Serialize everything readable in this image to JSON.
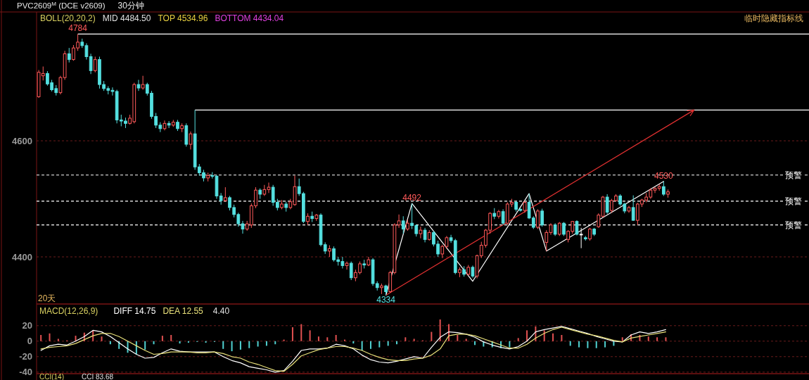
{
  "chart_data": [
    {
      "type": "candlestick",
      "title": "PVC2609$^{M}$ (DCE v2609)",
      "subtitle": "30分钟",
      "ylim": [
        4320,
        4822
      ],
      "yticks": [
        4400,
        4600
      ],
      "grid": "y",
      "legend": false,
      "tick_labels": "y",
      "categories": [
        null,
        null,
        null,
        null,
        null,
        null,
        null,
        null,
        null,
        null,
        null,
        null,
        null,
        null,
        null,
        null,
        null,
        null,
        null,
        null,
        null,
        null,
        null,
        null,
        null,
        null,
        null,
        null,
        null,
        null,
        null,
        null,
        null,
        null,
        null,
        null,
        null,
        null,
        null,
        null,
        null,
        null,
        null,
        null,
        null,
        null,
        null,
        null,
        null,
        null,
        null,
        null,
        null,
        null,
        null,
        null,
        null,
        null,
        null,
        null,
        null,
        null,
        null,
        null,
        null,
        null,
        null,
        null,
        null,
        null,
        null,
        null,
        null,
        null,
        null,
        null,
        null,
        null,
        null,
        null,
        null,
        null,
        null,
        null,
        null,
        null,
        null,
        null,
        null,
        null,
        null,
        null,
        null,
        null,
        null,
        null,
        null,
        null,
        null,
        null,
        null,
        null,
        null,
        null,
        null,
        null,
        null,
        null,
        null,
        null,
        null,
        null,
        null,
        null,
        null,
        null,
        null,
        null,
        null,
        null,
        null,
        null,
        null,
        null,
        null,
        null,
        null,
        null,
        null,
        null,
        null,
        null,
        null,
        null,
        null,
        null,
        null,
        null,
        null,
        null,
        null,
        null,
        null,
        null,
        null,
        null,
        null,
        null,
        null,
        null,
        null,
        null,
        null,
        null,
        null,
        null,
        null,
        null,
        null,
        null,
        null,
        null,
        null,
        null,
        null,
        null,
        null,
        null,
        null,
        null,
        null,
        null,
        null,
        null,
        null,
        null,
        null,
        null
      ],
      "colors": [
        "#ff5a5a",
        "#ff5a5a",
        "#54e0e0",
        "#54e0e0",
        "#54e0e0",
        "#ff5a5a",
        "#ff5a5a",
        "#54e0e0",
        "#ff5a5a",
        "#ff5a5a",
        "#54e0e0",
        "#54e0e0",
        "#54e0e0",
        "#ff5a5a",
        "#54e0e0",
        "#54e0e0",
        "#54e0e0",
        "#54e0e0",
        "#54e0e0",
        "#54e0e0",
        "#54e0e0",
        "#ff5a5a",
        "#ff5a5a",
        "#54e0e0",
        "#ff5a5a",
        "#54e0e0",
        "#54e0e0",
        "#54e0e0",
        "#54e0e0",
        "#ff5a5a",
        "#54e0e0",
        "#ff5a5a",
        "#54e0e0",
        "#ff5a5a",
        "#54e0e0",
        "#ff5a5a",
        "#54e0e0",
        "#54e0e0",
        "#54e0e0",
        "#ff5a5a",
        "#54e0e0",
        "#54e0e0",
        "#54e0e0",
        "#ff5a5a",
        "#54e0e0",
        "#54e0e0",
        "#54e0e0",
        "#54e0e0",
        "#ff5a5a",
        "#ff5a5a",
        "#ff5a5a",
        "#54e0e0",
        "#ff5a5a",
        "#ff5a5a",
        "#54e0e0",
        "#54e0e0",
        "#ff5a5a",
        "#54e0e0",
        "#ff5a5a",
        "#ff5a5a",
        "#54e0e0",
        "#54e0e0",
        "#ff5a5a",
        "#54e0e0",
        "#ff5a5a",
        "#54e0e0",
        "#54e0e0",
        "#ff5a5a",
        "#54e0e0",
        "#54e0e0",
        "#54e0e0",
        "#ff5a5a",
        "#54e0e0",
        "#ff5a5a",
        "#ff5a5a",
        "#54e0e0",
        "#ff5a5a",
        "#54e0e0",
        "#54e0e0",
        "#ff5a5a",
        "#54e0e0",
        "#ff5a5a",
        "#ff5a5a",
        "#ff5a5a",
        "#54e0e0",
        "#ff5a5a",
        "#54e0e0",
        "#54e0e0",
        "#ff5a5a",
        "#54e0e0",
        "#ff5a5a",
        "#54e0e0",
        "#54e0e0",
        "#ff5a5a",
        "#ff5a5a",
        "#54e0e0",
        "#54e0e0",
        "#ff5a5a",
        "#54e0e0",
        "#ff5a5a",
        "#54e0e0",
        "#ff5a5a",
        "#ff5a5a",
        "#ff5a5a",
        "#ff5a5a",
        "#54e0e0",
        "#ff5a5a",
        "#54e0e0",
        "#ff5a5a",
        "#ff5a5a",
        "#54e0e0",
        "#54e0e0",
        "#ff5a5a",
        "#54e0e0",
        "#54e0e0",
        "#ff5a5a",
        "#54e0e0",
        "#ff5a5a",
        "#ff5a5a",
        "#54e0e0",
        "#ff5a5a",
        "#54e0e0",
        "#ff5a5a",
        "#ff5a5a",
        "#54e0e0",
        "#ffffff",
        "#54e0e0",
        "#ff5a5a",
        "#54e0e0",
        "#ff5a5a",
        "#ff5a5a",
        "#54e0e0",
        "#ff5a5a",
        "#ff5a5a",
        "#54e0e0",
        "#54e0e0",
        "#ff5a5a",
        "#54e0e0",
        "#ff5a5a",
        "#ff5a5a",
        "#ff5a5a",
        "#ff5a5a",
        "#ff5a5a",
        "#ff5a5a",
        "#54e0e0",
        "#ff5a5a",
        null,
        null,
        null,
        null,
        null,
        null,
        null,
        null,
        null,
        null,
        null,
        null,
        null,
        null,
        null,
        null,
        null,
        null,
        null,
        null,
        null,
        null,
        null,
        null,
        null,
        null,
        null,
        null,
        null,
        null,
        null,
        null
      ],
      "ohlc": [
        [
          4676,
          4722,
          4674,
          4718
        ],
        [
          4712,
          4728,
          4704,
          4716
        ],
        [
          4716,
          4720,
          4695,
          4698
        ],
        [
          4700,
          4705,
          4685,
          4688
        ],
        [
          4690,
          4696,
          4678,
          4683
        ],
        [
          4683,
          4712,
          4680,
          4709
        ],
        [
          4709,
          4755,
          4705,
          4750
        ],
        [
          4750,
          4760,
          4735,
          4740
        ],
        [
          4740,
          4765,
          4738,
          4760
        ],
        [
          4760,
          4784,
          4755,
          4770
        ],
        [
          4770,
          4776,
          4760,
          4764
        ],
        [
          4764,
          4768,
          4740,
          4745
        ],
        [
          4745,
          4750,
          4715,
          4721
        ],
        [
          4721,
          4745,
          4718,
          4740
        ],
        [
          4740,
          4745,
          4690,
          4697
        ],
        [
          4697,
          4703,
          4686,
          4690
        ],
        [
          4690,
          4694,
          4680,
          4687
        ],
        [
          4687,
          4692,
          4678,
          4685
        ],
        [
          4685,
          4688,
          4630,
          4636
        ],
        [
          4636,
          4645,
          4625,
          4634
        ],
        [
          4634,
          4640,
          4622,
          4630
        ],
        [
          4630,
          4645,
          4628,
          4639
        ],
        [
          4633,
          4700,
          4630,
          4697
        ],
        [
          4697,
          4705,
          4686,
          4691
        ],
        [
          4691,
          4712,
          4688,
          4697
        ],
        [
          4697,
          4700,
          4678,
          4682
        ],
        [
          4682,
          4686,
          4638,
          4642
        ],
        [
          4642,
          4648,
          4622,
          4627
        ],
        [
          4627,
          4632,
          4615,
          4621
        ],
        [
          4621,
          4635,
          4618,
          4630
        ],
        [
          4630,
          4634,
          4622,
          4627
        ],
        [
          4627,
          4636,
          4624,
          4632
        ],
        [
          4632,
          4636,
          4617,
          4621
        ],
        [
          4621,
          4630,
          4615,
          4626
        ],
        [
          4626,
          4630,
          4590,
          4594
        ],
        [
          4594,
          4616,
          4585,
          4612
        ],
        [
          4612,
          4653,
          4550,
          4555
        ],
        [
          4555,
          4560,
          4540,
          4545
        ],
        [
          4545,
          4550,
          4530,
          4536
        ],
        [
          4536,
          4545,
          4530,
          4540
        ],
        [
          4540,
          4546,
          4535,
          4539
        ],
        [
          4539,
          4541,
          4500,
          4505
        ],
        [
          4505,
          4510,
          4490,
          4497
        ],
        [
          4497,
          4520,
          4495,
          4502
        ],
        [
          4502,
          4505,
          4480,
          4485
        ],
        [
          4485,
          4490,
          4468,
          4473
        ],
        [
          4473,
          4476,
          4452,
          4457
        ],
        [
          4457,
          4462,
          4440,
          4448
        ],
        [
          4448,
          4462,
          4445,
          4457
        ],
        [
          4455,
          4492,
          4450,
          4488
        ],
        [
          4488,
          4520,
          4484,
          4515
        ],
        [
          4515,
          4518,
          4500,
          4508
        ],
        [
          4508,
          4524,
          4505,
          4516
        ],
        [
          4516,
          4528,
          4510,
          4520
        ],
        [
          4520,
          4524,
          4488,
          4494
        ],
        [
          4494,
          4500,
          4480,
          4485
        ],
        [
          4485,
          4498,
          4482,
          4491
        ],
        [
          4491,
          4495,
          4478,
          4485
        ],
        [
          4485,
          4500,
          4482,
          4495
        ],
        [
          4490,
          4540,
          4488,
          4521
        ],
        [
          4521,
          4535,
          4505,
          4509
        ],
        [
          4509,
          4512,
          4458,
          4461
        ],
        [
          4461,
          4475,
          4455,
          4470
        ],
        [
          4470,
          4478,
          4460,
          4466
        ],
        [
          4466,
          4474,
          4462,
          4472
        ],
        [
          4472,
          4475,
          4418,
          4421
        ],
        [
          4421,
          4425,
          4405,
          4410
        ],
        [
          4410,
          4420,
          4400,
          4414
        ],
        [
          4414,
          4418,
          4392,
          4395
        ],
        [
          4395,
          4400,
          4385,
          4392
        ],
        [
          4392,
          4400,
          4380,
          4385
        ],
        [
          4385,
          4392,
          4378,
          4389
        ],
        [
          4389,
          4392,
          4360,
          4364
        ],
        [
          4364,
          4378,
          4358,
          4373
        ],
        [
          4373,
          4392,
          4370,
          4388
        ],
        [
          4388,
          4395,
          4380,
          4386
        ],
        [
          4386,
          4400,
          4384,
          4395
        ],
        [
          4395,
          4398,
          4350,
          4354
        ],
        [
          4354,
          4358,
          4342,
          4347
        ],
        [
          4347,
          4354,
          4336,
          4350
        ],
        [
          4350,
          4352,
          4334,
          4340
        ],
        [
          4340,
          4376,
          4338,
          4373
        ],
        [
          4373,
          4458,
          4370,
          4455
        ],
        [
          4455,
          4473,
          4450,
          4462
        ],
        [
          4462,
          4470,
          4440,
          4448
        ],
        [
          4448,
          4464,
          4445,
          4458
        ],
        [
          4458,
          4492,
          4448,
          4454
        ],
        [
          4454,
          4456,
          4435,
          4440
        ],
        [
          4440,
          4452,
          4432,
          4446
        ],
        [
          4446,
          4450,
          4425,
          4430
        ],
        [
          4430,
          4446,
          4428,
          4442
        ],
        [
          4442,
          4445,
          4418,
          4422
        ],
        [
          4422,
          4428,
          4400,
          4405
        ],
        [
          4405,
          4421,
          4398,
          4418
        ],
        [
          4418,
          4436,
          4414,
          4433
        ],
        [
          4433,
          4438,
          4424,
          4428
        ],
        [
          4428,
          4431,
          4370,
          4373
        ],
        [
          4373,
          4382,
          4365,
          4378
        ],
        [
          4378,
          4384,
          4366,
          4370
        ],
        [
          4370,
          4386,
          4368,
          4382
        ],
        [
          4382,
          4385,
          4364,
          4367
        ],
        [
          4367,
          4404,
          4363,
          4402
        ],
        [
          4402,
          4426,
          4398,
          4420
        ],
        [
          4420,
          4448,
          4416,
          4446
        ],
        [
          4446,
          4477,
          4440,
          4475
        ],
        [
          4475,
          4484,
          4465,
          4470
        ],
        [
          4470,
          4481,
          4466,
          4478
        ],
        [
          4478,
          4482,
          4455,
          4458
        ],
        [
          4458,
          4494,
          4455,
          4491
        ],
        [
          4491,
          4500,
          4486,
          4494
        ],
        [
          4494,
          4496,
          4478,
          4482
        ],
        [
          4482,
          4484,
          4478,
          4480
        ],
        [
          4480,
          4497,
          4476,
          4494
        ],
        [
          4494,
          4509,
          4465,
          4467
        ],
        [
          4467,
          4470,
          4448,
          4451
        ],
        [
          4451,
          4482,
          4448,
          4479
        ],
        [
          4479,
          4483,
          4452,
          4455
        ],
        [
          4425,
          4446,
          4410,
          4442
        ],
        [
          4442,
          4458,
          4438,
          4455
        ],
        [
          4455,
          4458,
          4436,
          4439
        ],
        [
          4439,
          4460,
          4436,
          4458
        ],
        [
          4458,
          4460,
          4436,
          4439
        ],
        [
          4430,
          4446,
          4425,
          4444
        ],
        [
          4444,
          4462,
          4440,
          4461
        ],
        [
          4461,
          4463,
          4437,
          4439
        ],
        [
          4439,
          4450,
          4415,
          4439
        ],
        [
          4433,
          4436,
          4428,
          4431
        ],
        [
          4431,
          4450,
          4428,
          4448
        ],
        [
          4448,
          4450,
          4436,
          4439
        ],
        [
          4452,
          4475,
          4450,
          4472
        ],
        [
          4470,
          4505,
          4468,
          4503
        ],
        [
          4503,
          4508,
          4474,
          4477
        ],
        [
          4480,
          4500,
          4476,
          4497
        ],
        [
          4497,
          4508,
          4495,
          4505
        ],
        [
          4505,
          4508,
          4488,
          4491
        ],
        [
          4491,
          4493,
          4475,
          4479
        ],
        [
          4479,
          4488,
          4476,
          4485
        ],
        [
          4485,
          4506,
          4462,
          4463
        ],
        [
          4463,
          4493,
          4455,
          4491
        ],
        [
          4491,
          4500,
          4486,
          4498
        ],
        [
          4498,
          4510,
          4494,
          4503
        ],
        [
          4503,
          4518,
          4500,
          4515
        ],
        [
          4515,
          4520,
          4510,
          4518
        ],
        [
          4518,
          4525,
          4514,
          4521
        ],
        [
          4521,
          4530,
          4505,
          4508
        ],
        [
          4508,
          4516,
          4502,
          4512
        ],
        null,
        null,
        null,
        null,
        null,
        null,
        null,
        null,
        null,
        null,
        null,
        null,
        null,
        null,
        null,
        null,
        null,
        null,
        null,
        null,
        null,
        null,
        null,
        null,
        null,
        null,
        null,
        null,
        null,
        null,
        null,
        null
      ],
      "series": [
        {
          "type": "line",
          "color": "#ffffff",
          "values": [
            null,
            null,
            null,
            null,
            null,
            null,
            null,
            null,
            null,
            null,
            null,
            null,
            null,
            null,
            null,
            null,
            null,
            null,
            null,
            null,
            null,
            null,
            null,
            null,
            null,
            null,
            null,
            null,
            null,
            null,
            null,
            null,
            null,
            null,
            null,
            null,
            null,
            null,
            null,
            null,
            null,
            null,
            null,
            null,
            null,
            null,
            null,
            null,
            null,
            null,
            null,
            null,
            null,
            null,
            null,
            null,
            null,
            null,
            null,
            null,
            null,
            null,
            null,
            null,
            null,
            null,
            null,
            null,
            null,
            null,
            null,
            null,
            null,
            null,
            null,
            null,
            null,
            null,
            null,
            null,
            4334,
            null,
            null,
            null,
            null,
            null,
            4492,
            null,
            null,
            null,
            null,
            null,
            null,
            null,
            null,
            null,
            null,
            null,
            null,
            null,
            4358,
            null,
            null,
            null,
            null,
            null,
            null,
            null,
            null,
            null,
            null,
            null,
            null,
            4509,
            null,
            null,
            null,
            4410,
            null,
            null,
            null,
            null,
            null,
            null,
            null,
            null,
            null,
            null,
            null,
            null,
            null,
            null,
            null,
            null,
            null,
            null,
            null,
            null,
            null,
            null,
            null,
            null,
            null,
            null,
            4530,
            null,
            null,
            null,
            null,
            null,
            null,
            null,
            null,
            null,
            null,
            null,
            null,
            null,
            null,
            null,
            null,
            null,
            null,
            null,
            null,
            null,
            null,
            null,
            null,
            null,
            null,
            null,
            null,
            null,
            null,
            null,
            null,
            null
          ]
        }
      ],
      "ref_lines": [
        {
          "axis": "y",
          "value": 4784,
          "color": "#ffffff",
          "line_style": "solid"
        },
        {
          "axis": "y",
          "value": 4653,
          "color": "#ffffff",
          "line_style": "solid"
        },
        {
          "axis": "y",
          "value": 4541,
          "label": "预警",
          "color": "#ffffff",
          "line_style": "dashed"
        },
        {
          "axis": "y",
          "value": 4496,
          "label": "预警",
          "color": "#ffffff",
          "line_style": "dashed"
        },
        {
          "axis": "y",
          "value": 4455,
          "label": "预警",
          "color": "#ffffff",
          "line_style": "dashed"
        }
      ],
      "annotations": [
        "BOLL(20,20,2)",
        "MID 4484.50",
        "TOP 4534.96",
        "BOTTOM 4434.04",
        "临时隐藏指标线",
        "20天",
        {
          "text": "4784",
          "y": 4784
        },
        {
          "text": "4334",
          "y": 4334
        },
        {
          "text": "4492",
          "y": 4492
        },
        {
          "text": "4530",
          "y": 4530
        }
      ]
    },
    {
      "type": "bar",
      "title": "MACD(12,26,9)",
      "ylim": [
        -42,
        48
      ],
      "yticks": [
        20,
        0,
        -20,
        -40
      ],
      "grid": "y",
      "legend": "top left",
      "tick_labels": "y",
      "categories": [
        null,
        null,
        null,
        null,
        null,
        null,
        null,
        null,
        null,
        null,
        null,
        null,
        null,
        null,
        null,
        null,
        null,
        null,
        null,
        null,
        null,
        null,
        null,
        null,
        null,
        null,
        null,
        null,
        null,
        null,
        null,
        null,
        null,
        null,
        null,
        null,
        null,
        null,
        null,
        null,
        null,
        null,
        null,
        null,
        null,
        null,
        null,
        null,
        null,
        null,
        null,
        null,
        null,
        null,
        null,
        null,
        null,
        null,
        null,
        null,
        null,
        null,
        null,
        null,
        null,
        null,
        null,
        null,
        null,
        null,
        null,
        null,
        null,
        null,
        null,
        null,
        null,
        null,
        null,
        null,
        null,
        null,
        null,
        null,
        null,
        null,
        null,
        null,
        null
      ],
      "series": [
        {
          "type": "bar",
          "values": [
            8,
            10,
            3,
            1,
            7,
            11,
            14,
            6,
            -4,
            -10,
            -15,
            -17,
            -11,
            -4,
            7,
            8,
            -3,
            -2,
            -1,
            -2,
            -1,
            -10,
            -13,
            -11,
            -9,
            -7,
            -6,
            -4,
            2,
            18,
            22,
            14,
            6,
            5,
            8,
            2,
            -3,
            -12,
            -10,
            -8,
            -6,
            -4,
            5,
            3,
            1,
            12,
            28,
            22,
            8,
            3,
            -5,
            -7,
            -8,
            -9,
            -8,
            4,
            14,
            19,
            14,
            10,
            8,
            -6,
            -8,
            -9,
            -9,
            -8,
            -6,
            5,
            9,
            8,
            6,
            5,
            5,
            null,
            null,
            null,
            null,
            null,
            null,
            null,
            null,
            null,
            null,
            null,
            null,
            null,
            null,
            null,
            null
          ],
          "colors": [
            "#e05050",
            "#e05050",
            "#e05050",
            "#e05050",
            "#e05050",
            "#e05050",
            "#e05050",
            "#e05050",
            "#50d0d0",
            "#50d0d0",
            "#50d0d0",
            "#50d0d0",
            "#50d0d0",
            "#50d0d0",
            "#e05050",
            "#e05050",
            "#50d0d0",
            "#50d0d0",
            "#50d0d0",
            "#50d0d0",
            "#50d0d0",
            "#50d0d0",
            "#50d0d0",
            "#50d0d0",
            "#50d0d0",
            "#50d0d0",
            "#50d0d0",
            "#50d0d0",
            "#e05050",
            "#e05050",
            "#e05050",
            "#e05050",
            "#e05050",
            "#e05050",
            "#e05050",
            "#e05050",
            "#50d0d0",
            "#50d0d0",
            "#50d0d0",
            "#50d0d0",
            "#50d0d0",
            "#50d0d0",
            "#e05050",
            "#e05050",
            "#e05050",
            "#e05050",
            "#e05050",
            "#e05050",
            "#e05050",
            "#e05050",
            "#50d0d0",
            "#50d0d0",
            "#50d0d0",
            "#50d0d0",
            "#50d0d0",
            "#e05050",
            "#e05050",
            "#e05050",
            "#e05050",
            "#e05050",
            "#e05050",
            "#50d0d0",
            "#50d0d0",
            "#50d0d0",
            "#50d0d0",
            "#50d0d0",
            "#50d0d0",
            "#e05050",
            "#e05050",
            "#e05050",
            "#e05050",
            "#e05050",
            "#e05050",
            null,
            null,
            null,
            null,
            null,
            null,
            null,
            null,
            null,
            null,
            null,
            null,
            null,
            null,
            null,
            null
          ]
        },
        {
          "type": "line",
          "name": "DIFF 14.75",
          "color": "#ffffff",
          "values": [
            -12,
            -6,
            -4,
            -5,
            0,
            6,
            14,
            12,
            6,
            -2,
            -10,
            -17,
            -22,
            -21,
            -15,
            -10,
            -13,
            -14,
            -14,
            -14,
            -14,
            -20,
            -25,
            -28,
            -33,
            -35,
            -37,
            -40,
            -38,
            -26,
            -12,
            -10,
            -10,
            -9,
            -4,
            -6,
            -10,
            -18,
            -24,
            -27,
            -28,
            -26,
            -23,
            -20,
            -22,
            -8,
            5,
            12,
            11,
            9,
            5,
            -1,
            -5,
            -8,
            -10,
            -7,
            0,
            12,
            15,
            17,
            19,
            16,
            13,
            10,
            6,
            3,
            0,
            -1,
            8,
            12,
            10,
            12,
            15,
            null,
            null,
            null,
            null,
            null,
            null,
            null,
            null,
            null,
            null,
            null,
            null,
            null,
            null,
            null,
            null
          ]
        },
        {
          "type": "line",
          "name": "DEA 12.55",
          "color": "#e8e07a",
          "values": [
            -10,
            -8,
            -7,
            -6,
            -3,
            2,
            7,
            10,
            10,
            6,
            0,
            -6,
            -12,
            -17,
            -16,
            -14,
            -14,
            -14,
            -15,
            -15,
            -14,
            -16,
            -20,
            -22,
            -27,
            -30,
            -34,
            -38,
            -39,
            -30,
            -19,
            -15,
            -11,
            -9,
            -7,
            -7,
            -9,
            -12,
            -17,
            -21,
            -24,
            -25,
            -25,
            -23,
            -22,
            -18,
            -10,
            7,
            9,
            9,
            7,
            3,
            -1,
            -5,
            -9,
            -9,
            -4,
            4,
            10,
            15,
            18,
            15,
            12,
            9,
            7,
            4,
            1,
            -1,
            4,
            6,
            8,
            10,
            12,
            null,
            null,
            null,
            null,
            null,
            null,
            null,
            null,
            null,
            null,
            null,
            null,
            null,
            null,
            null,
            null
          ]
        }
      ],
      "annotations": [
        "4.40",
        "CCI(14)",
        "CCI 83.68"
      ]
    }
  ]
}
